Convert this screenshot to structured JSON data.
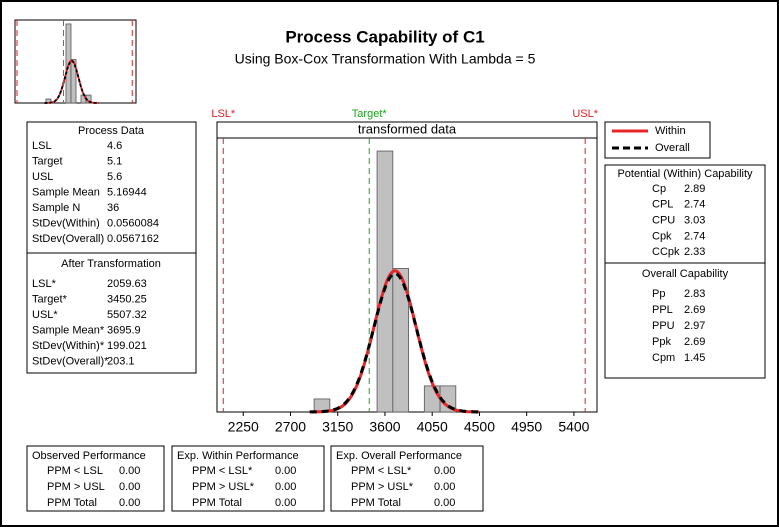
{
  "chart_data": {
    "type": "histogram",
    "title": "Process Capability of C1",
    "subtitle": "Using Box-Cox Transformation With Lambda = 5",
    "panel_title": "transformed data",
    "bins": [
      2925,
      3075,
      3225,
      3375,
      3525,
      3675,
      3825,
      3975,
      4125,
      4275
    ],
    "counts": [
      1,
      0,
      0,
      0,
      20,
      11,
      0,
      2,
      2
    ],
    "color": "#c0c0c0",
    "xlim": [
      2000,
      5620
    ],
    "xticks": [
      2250,
      2700,
      3150,
      3600,
      4050,
      4500,
      4950,
      5400
    ],
    "ylim": [
      0,
      21
    ],
    "spec_lines": [
      {
        "name": "LSL*",
        "value": 2059.63,
        "color": "#e02020"
      },
      {
        "name": "Target*",
        "value": 3450.25,
        "color": "#20a020"
      },
      {
        "name": "USL*",
        "value": 5507.32,
        "color": "#e02020"
      }
    ],
    "series": [
      {
        "name": "Within",
        "color": "#e8262a",
        "mean": 3695.9,
        "sd": 199.021,
        "n": 36
      },
      {
        "name": "Overall",
        "color": "#000000",
        "mean": 3695.9,
        "sd": 203.1,
        "n": 36
      }
    ]
  },
  "process_data": {
    "title": "Process Data",
    "rows": [
      {
        "label": "LSL",
        "value": "4.6"
      },
      {
        "label": "Target",
        "value": "5.1"
      },
      {
        "label": "USL",
        "value": "5.6"
      },
      {
        "label": "Sample Mean",
        "value": "5.16944"
      },
      {
        "label": "Sample N",
        "value": "36"
      },
      {
        "label": "StDev(Within)",
        "value": "0.0560084"
      },
      {
        "label": "StDev(Overall)",
        "value": "0.0567162"
      }
    ],
    "transformation_title": "After Transformation",
    "transformed_rows": [
      {
        "label": "LSL*",
        "value": "2059.63"
      },
      {
        "label": "Target*",
        "value": "3450.25"
      },
      {
        "label": "USL*",
        "value": "5507.32"
      },
      {
        "label": "Sample Mean*",
        "value": "3695.9"
      },
      {
        "label": "StDev(Within)*",
        "value": "199.021"
      },
      {
        "label": "StDev(Overall)*",
        "value": "203.1"
      }
    ]
  },
  "capability": {
    "within_title": "Potential (Within) Capability",
    "within": [
      {
        "label": "Cp",
        "value": "2.89"
      },
      {
        "label": "CPL",
        "value": "2.74"
      },
      {
        "label": "CPU",
        "value": "3.03"
      },
      {
        "label": "Cpk",
        "value": "2.74"
      },
      {
        "label": "CCpk",
        "value": "2.33"
      }
    ],
    "overall_title": "Overall Capability",
    "overall": [
      {
        "label": "Pp",
        "value": "2.83"
      },
      {
        "label": "PPL",
        "value": "2.69"
      },
      {
        "label": "PPU",
        "value": "2.97"
      },
      {
        "label": "Ppk",
        "value": "2.69"
      },
      {
        "label": "Cpm",
        "value": "1.45"
      }
    ]
  },
  "performance": [
    {
      "title": "Observed Performance",
      "rows": [
        {
          "label": "PPM < LSL",
          "value": "0.00"
        },
        {
          "label": "PPM > USL",
          "value": "0.00"
        },
        {
          "label": "PPM Total",
          "value": "0.00"
        }
      ]
    },
    {
      "title": "Exp. Within Performance",
      "rows": [
        {
          "label": "PPM < LSL*",
          "value": "0.00"
        },
        {
          "label": "PPM > USL*",
          "value": "0.00"
        },
        {
          "label": "PPM Total",
          "value": "0.00"
        }
      ]
    },
    {
      "title": "Exp. Overall Performance",
      "rows": [
        {
          "label": "PPM < LSL*",
          "value": "0.00"
        },
        {
          "label": "PPM > USL*",
          "value": "0.00"
        },
        {
          "label": "PPM Total",
          "value": "0.00"
        }
      ]
    }
  ]
}
